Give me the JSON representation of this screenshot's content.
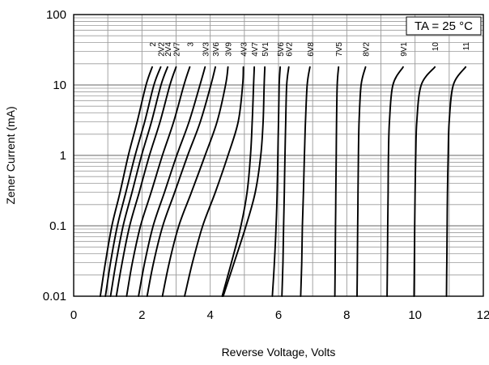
{
  "chart_data": {
    "type": "line",
    "title": "",
    "xlabel": "Reverse Voltage, Volts",
    "ylabel": "Zener Current (mA)",
    "annotation": "TA = 25 °C",
    "x_scale": "linear",
    "y_scale": "log",
    "xlim": [
      0,
      12
    ],
    "ylim": [
      0.01,
      100
    ],
    "x_ticks": [
      "0",
      "2",
      "4",
      "6",
      "8",
      "10",
      "12"
    ],
    "y_ticks": [
      "0.01",
      "0.1",
      "1",
      "10",
      "100"
    ],
    "grid": true,
    "line_color": "#000000",
    "grid_color": "#9a9a9a",
    "series": [
      {
        "name": "2",
        "points": [
          [
            0.78,
            0.01
          ],
          [
            0.93,
            0.03
          ],
          [
            1.12,
            0.1
          ],
          [
            1.36,
            0.3
          ],
          [
            1.6,
            1
          ],
          [
            1.86,
            3
          ],
          [
            2.12,
            10
          ],
          [
            2.3,
            18
          ]
        ]
      },
      {
        "name": "2V2",
        "points": [
          [
            0.93,
            0.01
          ],
          [
            1.08,
            0.03
          ],
          [
            1.28,
            0.1
          ],
          [
            1.53,
            0.3
          ],
          [
            1.8,
            1
          ],
          [
            2.08,
            3
          ],
          [
            2.35,
            10
          ],
          [
            2.55,
            18
          ]
        ]
      },
      {
        "name": "2V4",
        "points": [
          [
            1.08,
            0.01
          ],
          [
            1.24,
            0.03
          ],
          [
            1.45,
            0.1
          ],
          [
            1.71,
            0.3
          ],
          [
            1.99,
            1
          ],
          [
            2.28,
            3
          ],
          [
            2.56,
            10
          ],
          [
            2.75,
            18
          ]
        ]
      },
      {
        "name": "2V7",
        "points": [
          [
            1.25,
            0.01
          ],
          [
            1.42,
            0.03
          ],
          [
            1.64,
            0.1
          ],
          [
            1.92,
            0.3
          ],
          [
            2.22,
            1
          ],
          [
            2.53,
            3
          ],
          [
            2.82,
            10
          ],
          [
            3.0,
            18
          ]
        ]
      },
      {
        "name": "3",
        "points": [
          [
            1.55,
            0.01
          ],
          [
            1.72,
            0.03
          ],
          [
            1.96,
            0.1
          ],
          [
            2.27,
            0.3
          ],
          [
            2.6,
            1
          ],
          [
            2.93,
            3
          ],
          [
            3.23,
            10
          ],
          [
            3.4,
            18
          ]
        ]
      },
      {
        "name": "3V3",
        "points": [
          [
            1.9,
            0.01
          ],
          [
            2.08,
            0.03
          ],
          [
            2.33,
            0.1
          ],
          [
            2.66,
            0.3
          ],
          [
            3.02,
            1
          ],
          [
            3.38,
            3
          ],
          [
            3.7,
            10
          ],
          [
            3.85,
            18
          ]
        ]
      },
      {
        "name": "3V6",
        "points": [
          [
            2.15,
            0.01
          ],
          [
            2.34,
            0.03
          ],
          [
            2.61,
            0.1
          ],
          [
            2.96,
            0.3
          ],
          [
            3.34,
            1
          ],
          [
            3.71,
            3
          ],
          [
            4.02,
            10
          ],
          [
            4.15,
            18
          ]
        ]
      },
      {
        "name": "3V9",
        "points": [
          [
            2.6,
            0.01
          ],
          [
            2.8,
            0.03
          ],
          [
            3.08,
            0.1
          ],
          [
            3.45,
            0.3
          ],
          [
            3.85,
            1
          ],
          [
            4.2,
            3
          ],
          [
            4.45,
            10
          ],
          [
            4.52,
            18
          ]
        ]
      },
      {
        "name": "4V3",
        "points": [
          [
            3.25,
            0.01
          ],
          [
            3.48,
            0.03
          ],
          [
            3.78,
            0.1
          ],
          [
            4.15,
            0.3
          ],
          [
            4.52,
            1
          ],
          [
            4.82,
            3
          ],
          [
            4.95,
            10
          ],
          [
            4.97,
            18
          ]
        ]
      },
      {
        "name": "4V7",
        "points": [
          [
            4.35,
            0.01
          ],
          [
            4.62,
            0.03
          ],
          [
            4.9,
            0.1
          ],
          [
            5.08,
            0.3
          ],
          [
            5.18,
            1
          ],
          [
            5.23,
            3
          ],
          [
            5.27,
            10
          ],
          [
            5.29,
            18
          ]
        ]
      },
      {
        "name": "5V1",
        "points": [
          [
            4.38,
            0.01
          ],
          [
            4.7,
            0.03
          ],
          [
            5.05,
            0.1
          ],
          [
            5.32,
            0.3
          ],
          [
            5.48,
            1
          ],
          [
            5.55,
            3
          ],
          [
            5.58,
            10
          ],
          [
            5.6,
            18
          ]
        ]
      },
      {
        "name": "5V6",
        "points": [
          [
            5.82,
            0.01
          ],
          [
            5.88,
            0.03
          ],
          [
            5.93,
            0.1
          ],
          [
            5.96,
            0.3
          ],
          [
            5.98,
            1
          ],
          [
            6.0,
            3
          ],
          [
            6.02,
            10
          ],
          [
            6.05,
            18
          ]
        ]
      },
      {
        "name": "6V2",
        "points": [
          [
            6.1,
            0.01
          ],
          [
            6.13,
            0.03
          ],
          [
            6.15,
            0.1
          ],
          [
            6.17,
            0.3
          ],
          [
            6.19,
            1
          ],
          [
            6.21,
            3
          ],
          [
            6.24,
            10
          ],
          [
            6.3,
            18
          ]
        ]
      },
      {
        "name": "6V8",
        "points": [
          [
            6.65,
            0.01
          ],
          [
            6.68,
            0.03
          ],
          [
            6.7,
            0.1
          ],
          [
            6.73,
            0.3
          ],
          [
            6.76,
            1
          ],
          [
            6.79,
            3
          ],
          [
            6.84,
            10
          ],
          [
            6.92,
            18
          ]
        ]
      },
      {
        "name": "7V5",
        "points": [
          [
            7.65,
            0.01
          ],
          [
            7.66,
            0.03
          ],
          [
            7.67,
            0.1
          ],
          [
            7.68,
            0.3
          ],
          [
            7.69,
            1
          ],
          [
            7.7,
            3
          ],
          [
            7.72,
            10
          ],
          [
            7.76,
            18
          ]
        ]
      },
      {
        "name": "8V2",
        "points": [
          [
            8.3,
            0.01
          ],
          [
            8.31,
            0.03
          ],
          [
            8.32,
            0.1
          ],
          [
            8.33,
            0.3
          ],
          [
            8.34,
            1
          ],
          [
            8.36,
            3
          ],
          [
            8.42,
            10
          ],
          [
            8.55,
            18
          ]
        ]
      },
      {
        "name": "9V1",
        "points": [
          [
            9.18,
            0.01
          ],
          [
            9.19,
            0.03
          ],
          [
            9.2,
            0.1
          ],
          [
            9.21,
            0.3
          ],
          [
            9.22,
            1
          ],
          [
            9.25,
            3
          ],
          [
            9.35,
            10
          ],
          [
            9.65,
            18
          ]
        ]
      },
      {
        "name": "10",
        "points": [
          [
            9.97,
            0.01
          ],
          [
            9.98,
            0.03
          ],
          [
            9.99,
            0.1
          ],
          [
            10.0,
            0.3
          ],
          [
            10.02,
            1
          ],
          [
            10.05,
            3
          ],
          [
            10.18,
            10
          ],
          [
            10.58,
            18
          ]
        ]
      },
      {
        "name": "11",
        "points": [
          [
            10.92,
            0.01
          ],
          [
            10.93,
            0.03
          ],
          [
            10.94,
            0.1
          ],
          [
            10.95,
            0.3
          ],
          [
            10.97,
            1
          ],
          [
            11.0,
            3
          ],
          [
            11.12,
            10
          ],
          [
            11.48,
            18
          ]
        ]
      }
    ]
  }
}
